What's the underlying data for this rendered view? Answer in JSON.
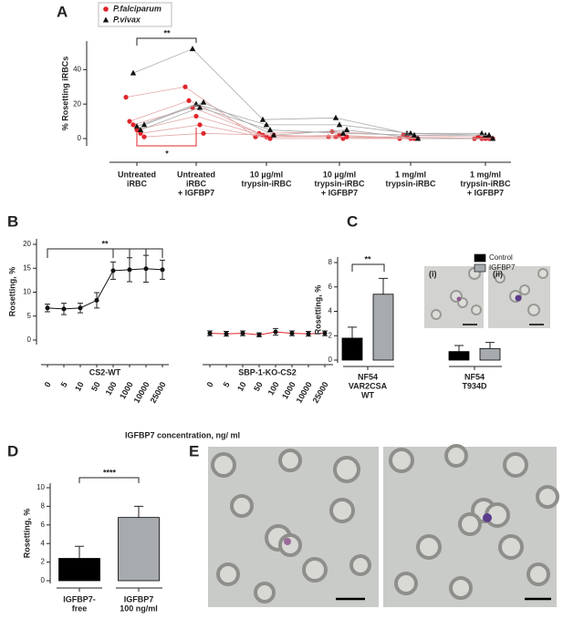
{
  "chart_data": [
    {
      "type": "line",
      "panel": "A",
      "y_label": "% Rosetting iRBCs",
      "categories": [
        [
          "Untreated",
          "iRBC"
        ],
        [
          "Untreated",
          "iRBC",
          "+ IGFBP7"
        ],
        [
          "10 µg/ml",
          "trypsin-iRBC"
        ],
        [
          "10 µg/ml",
          "trypsin-iRBC",
          "+ IGFBP7"
        ],
        [
          "1 mg/ml",
          "trypsin-iRBC"
        ],
        [
          "1 mg/ml",
          "trypsin-iRBC",
          "+ IGFBP7"
        ]
      ],
      "series": [
        {
          "name": "P.falciparum",
          "color": "#e0242b",
          "marker": "circle",
          "samples": [
            [
              24,
              30,
              1,
              1,
              0,
              0
            ],
            [
              10,
              22,
              3,
              4,
              2,
              1
            ],
            [
              8,
              18,
              2,
              1,
              1,
              0
            ],
            [
              5,
              13,
              1,
              2,
              0,
              0
            ],
            [
              3,
              8,
              0,
              0,
              0,
              0
            ],
            [
              1,
              3,
              2,
              1,
              0,
              0
            ]
          ]
        },
        {
          "name": "P.vivax",
          "color": "#111111",
          "marker": "triangle",
          "samples": [
            [
              38,
              52,
              11,
              12,
              3,
              3
            ],
            [
              7,
              20,
              8,
              8,
              3,
              2
            ],
            [
              5,
              18,
              5,
              3,
              2,
              2
            ],
            [
              8,
              21,
              2,
              5,
              0,
              0
            ]
          ]
        }
      ],
      "ylim": [
        0,
        55
      ],
      "yticks": [
        0,
        20,
        40
      ],
      "annotations": [
        "**",
        "*"
      ]
    },
    {
      "type": "line",
      "panel": "B",
      "y_label": "Rosetting, %",
      "x_label": "IGFBP7 concentration, ng/ ml",
      "categories": [
        0,
        5,
        10,
        50,
        100,
        1000,
        10000,
        25000
      ],
      "series": [
        {
          "name": "CS2-WT",
          "color": "#111111",
          "values": [
            6.7,
            6.5,
            6.7,
            8.3,
            14.5,
            14.7,
            14.9,
            14.7
          ],
          "errors": [
            0.8,
            1.2,
            1.0,
            1.6,
            1.8,
            2.5,
            2.8,
            2.0
          ]
        },
        {
          "name": "SBP-1-KO-CS2",
          "color": "#e0242b",
          "values": [
            1.4,
            1.3,
            1.4,
            1.1,
            1.7,
            1.4,
            1.3,
            1.4
          ],
          "errors": [
            0.5,
            0.5,
            0.5,
            0.4,
            0.7,
            0.5,
            0.5,
            0.5
          ]
        }
      ],
      "ylim": [
        0,
        20
      ],
      "yticks": [
        0,
        5,
        10,
        15,
        20
      ],
      "annotations": [
        "**"
      ]
    },
    {
      "type": "bar",
      "panel": "C",
      "y_label": "Rosetting, %",
      "categories": [
        [
          "NF54",
          "VAR2CSA",
          "WT"
        ],
        [
          "NF54",
          "T934D"
        ]
      ],
      "series": [
        {
          "name": "Control",
          "color": "#000000",
          "values": [
            1.8,
            0.7
          ],
          "errors": [
            0.9,
            0.5
          ]
        },
        {
          "name": "IGFBP7",
          "color": "#a7aaae",
          "values": [
            5.4,
            0.95
          ],
          "errors": [
            1.3,
            0.5
          ]
        }
      ],
      "ylim": [
        0,
        8
      ],
      "yticks": [
        0,
        2,
        4,
        6,
        8
      ],
      "annotations": [
        "**"
      ],
      "inset_labels": [
        "(i)",
        "(ii)"
      ]
    },
    {
      "type": "bar",
      "panel": "D",
      "y_label": "Rosetting, %",
      "categories": [
        [
          "IGFBP7-",
          "free"
        ],
        [
          "IGFBP7",
          "100 ng/ml"
        ]
      ],
      "values": [
        2.4,
        6.8
      ],
      "errors": [
        1.3,
        1.2
      ],
      "colors": [
        "#000000",
        "#a7aaae"
      ],
      "ylim": [
        0,
        10
      ],
      "yticks": [
        0,
        2,
        4,
        6,
        8,
        10
      ],
      "annotations": [
        "****"
      ]
    },
    {
      "type": "image",
      "panel": "E"
    }
  ]
}
